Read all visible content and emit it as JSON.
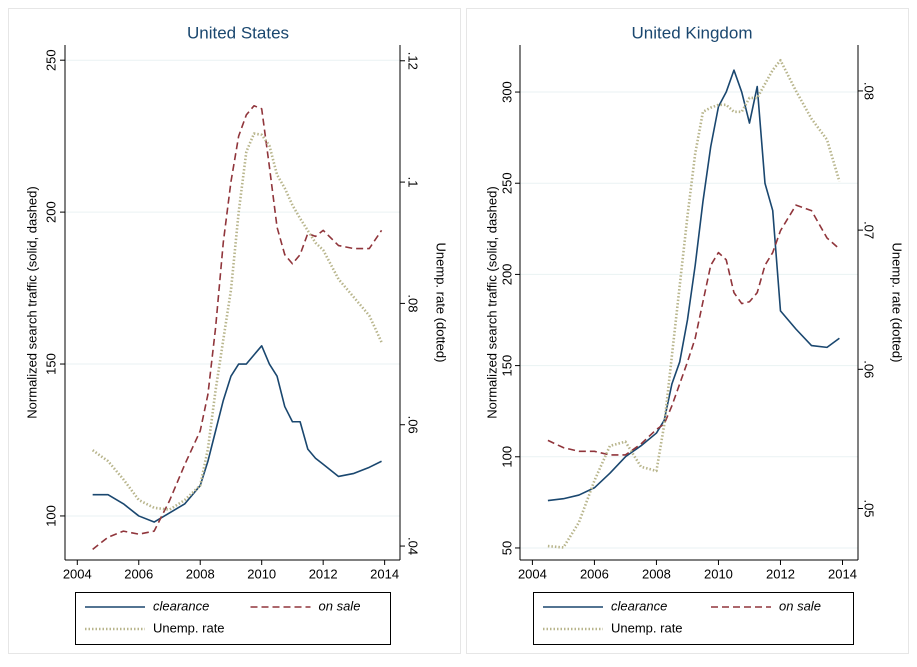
{
  "chart_data": [
    {
      "type": "line",
      "title": "United States",
      "ylabel": "Normalized search traffic (solid, dashed)",
      "y2label": "Unemp. rate (dotted)",
      "x": [
        2004.5,
        2005,
        2005.5,
        2006,
        2006.5,
        2007,
        2007.5,
        2008,
        2008.25,
        2008.5,
        2008.75,
        2009,
        2009.25,
        2009.5,
        2009.75,
        2010,
        2010.25,
        2010.5,
        2010.75,
        2011,
        2011.25,
        2011.5,
        2011.75,
        2012,
        2012.5,
        2013,
        2013.5,
        2013.9
      ],
      "series": [
        {
          "name": "clearance",
          "color": "#1a476f",
          "dash": "solid",
          "font_style": "italic",
          "values": [
            107,
            107,
            104,
            100,
            98,
            101,
            104,
            110,
            118,
            128,
            138,
            146,
            150,
            150,
            153,
            156,
            150,
            146,
            136,
            131,
            131,
            122,
            119,
            117,
            113,
            114,
            116,
            118
          ]
        },
        {
          "name": "on sale",
          "color": "#90353b",
          "dash": "dashed",
          "font_style": "italic",
          "values": [
            89,
            93,
            95,
            94,
            95,
            105,
            117,
            128,
            140,
            162,
            190,
            210,
            225,
            232,
            235,
            234,
            215,
            195,
            186,
            183,
            186,
            193,
            192,
            194,
            189,
            188,
            188,
            194
          ]
        },
        {
          "name": "Unemp. rate",
          "color": "#b8b58c",
          "dash": "dotted",
          "font_style": "normal",
          "axis": "y2",
          "values": [
            0.0558,
            0.054,
            0.051,
            0.0476,
            0.0463,
            0.046,
            0.0476,
            0.05,
            0.056,
            0.0657,
            0.074,
            0.0822,
            0.095,
            0.105,
            0.108,
            0.1078,
            0.106,
            0.1012,
            0.099,
            0.0962,
            0.094,
            0.092,
            0.09,
            0.0888,
            0.084,
            0.081,
            0.078,
            0.0736
          ]
        }
      ],
      "xlim": [
        2003.6,
        2014.5
      ],
      "xticks": [
        2004,
        2006,
        2008,
        2010,
        2012,
        2014
      ],
      "ylim": [
        85.5,
        255
      ],
      "yticks": [
        100,
        150,
        200,
        250
      ],
      "y2lim": [
        0.0377,
        0.1226
      ],
      "y2ticks": [
        {
          "value": 0.04,
          "label": ".04"
        },
        {
          "value": 0.06,
          "label": ".06"
        },
        {
          "value": 0.08,
          "label": ".08"
        },
        {
          "value": 0.1,
          "label": ".1"
        },
        {
          "value": 0.12,
          "label": ".12"
        }
      ],
      "grid": true
    },
    {
      "type": "line",
      "title": "United Kingdom",
      "ylabel": "Normalized search traffic (solid, dashed)",
      "y2label": "Unemp. rate (dotted)",
      "x": [
        2004.5,
        2005,
        2005.5,
        2006,
        2006.5,
        2007,
        2007.5,
        2008,
        2008.25,
        2008.5,
        2008.75,
        2009,
        2009.25,
        2009.5,
        2009.75,
        2010,
        2010.25,
        2010.5,
        2010.75,
        2011,
        2011.25,
        2011.5,
        2011.75,
        2012,
        2012.5,
        2013,
        2013.5,
        2013.9
      ],
      "series": [
        {
          "name": "clearance",
          "color": "#1a476f",
          "dash": "solid",
          "font_style": "italic",
          "values": [
            76,
            77,
            79,
            83,
            91,
            100,
            106,
            113,
            120,
            140,
            152,
            175,
            205,
            240,
            270,
            292,
            300,
            312,
            300,
            283,
            303,
            250,
            235,
            180,
            170,
            161,
            160,
            165
          ]
        },
        {
          "name": "on sale",
          "color": "#90353b",
          "dash": "dashed",
          "font_style": "italic",
          "values": [
            109,
            105,
            103,
            103,
            101,
            101,
            107,
            115,
            118,
            128,
            140,
            152,
            165,
            185,
            205,
            212,
            208,
            190,
            184,
            185,
            190,
            205,
            212,
            224,
            238,
            235,
            220,
            214
          ]
        },
        {
          "name": "Unemp. rate",
          "color": "#b8b58c",
          "dash": "dotted",
          "font_style": "normal",
          "axis": "y2",
          "values": [
            0.0473,
            0.0472,
            0.049,
            0.052,
            0.0545,
            0.0548,
            0.053,
            0.0527,
            0.056,
            0.061,
            0.066,
            0.071,
            0.0755,
            0.0785,
            0.0788,
            0.079,
            0.079,
            0.0785,
            0.0785,
            0.0795,
            0.0795,
            0.0805,
            0.0815,
            0.0822,
            0.08,
            0.078,
            0.0765,
            0.0735
          ]
        }
      ],
      "xlim": [
        2003.6,
        2014.5
      ],
      "xticks": [
        2004,
        2006,
        2008,
        2010,
        2012,
        2014
      ],
      "ylim": [
        43.4,
        325.8
      ],
      "yticks": [
        50,
        100,
        150,
        200,
        250,
        300
      ],
      "y2lim": [
        0.0463,
        0.0833
      ],
      "y2ticks": [
        {
          "value": 0.05,
          "label": ".05"
        },
        {
          "value": 0.06,
          "label": ".06"
        },
        {
          "value": 0.07,
          "label": ".07"
        },
        {
          "value": 0.08,
          "label": ".08"
        }
      ],
      "grid": true
    }
  ]
}
